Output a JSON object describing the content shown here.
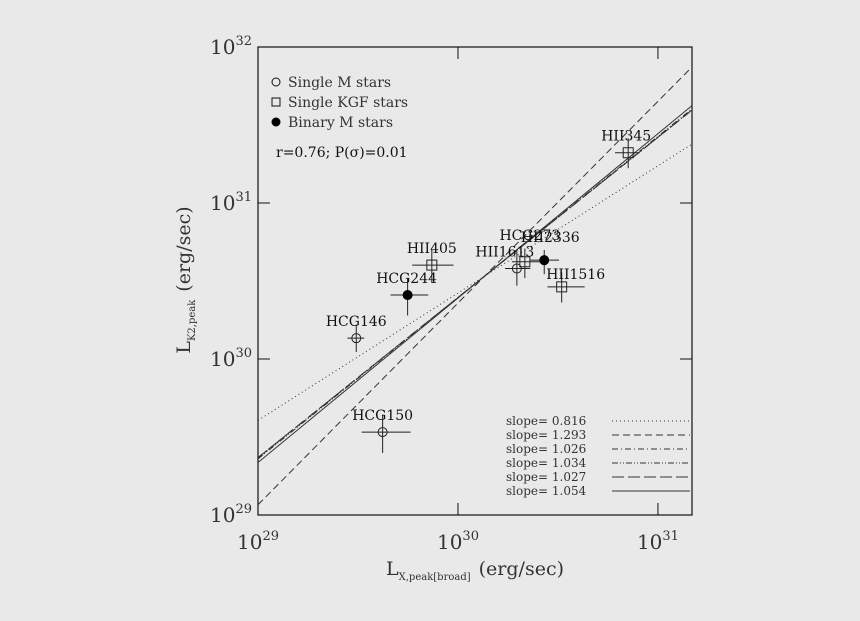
{
  "chart_data": {
    "type": "scatter",
    "x_label": {
      "main": "L",
      "sub": "X,peak[broad]",
      "unit": "(erg/sec)"
    },
    "y_label": {
      "main": "L",
      "sub": "K2,peak",
      "unit": "(erg/sec)"
    },
    "xscale": "log",
    "yscale": "log",
    "xlim": [
      1e+29,
      1.48e+31
    ],
    "ylim": [
      1e+29,
      1e+32
    ],
    "xticks": [
      {
        "value": 1e+29,
        "label": "10",
        "sup": "29"
      },
      {
        "value": 1e+30,
        "label": "10",
        "sup": "30"
      },
      {
        "value": 1e+31,
        "label": "10",
        "sup": "31"
      }
    ],
    "yticks": [
      {
        "value": 1e+29,
        "label": "10",
        "sup": "29"
      },
      {
        "value": 1e+30,
        "label": "10",
        "sup": "30"
      },
      {
        "value": 1e+31,
        "label": "10",
        "sup": "31"
      },
      {
        "value": 1e+32,
        "label": "10",
        "sup": "32"
      }
    ],
    "annotation": "r=0.76; P(σ)=0.01",
    "series": [
      {
        "name": "Single M stars",
        "marker": "circle",
        "color": "#222222",
        "labels": [
          "HCG150",
          "HCG146",
          "HII1613"
        ],
        "x": [
          4.2e+29,
          3.1e+29,
          1.97e+30
        ],
        "values": [
          3.4e+29,
          1.36e+30,
          3.8e+30
        ],
        "x_range": [
          [
            3.3e+29,
            5.8e+29
          ],
          [
            2.8e+29,
            3.4e+29
          ],
          [
            1.72e+30,
            2.3e+30
          ]
        ],
        "y_range": [
          [
            2.5e+29,
            4.4e+29
          ],
          [
            1.11e+30,
            1.66e+30
          ],
          [
            2.95e+30,
            5e+30
          ]
        ]
      },
      {
        "name": "Single KGF stars",
        "marker": "square",
        "color": "#222222",
        "labels": [
          "HII405",
          "HCG273",
          "HII1516",
          "HII345"
        ],
        "x": [
          7.4e+29,
          2.16e+30,
          3.3e+30,
          7.1e+30
        ],
        "values": [
          4e+30,
          4.2e+30,
          2.9e+30,
          2.1e+31
        ],
        "x_range": [
          [
            5.9e+29,
            9.5e+29
          ],
          [
            1.86e+30,
            2.57e+30
          ],
          [
            2.8e+30,
            4.3e+30
          ],
          [
            6.1e+30,
            8.1e+30
          ]
        ],
        "y_range": [
          [
            3.1e+30,
            5e+30
          ],
          [
            3.3e+30,
            5.1e+30
          ],
          [
            2.3e+30,
            3.6e+30
          ],
          [
            1.67e+31,
            2.6e+31
          ]
        ]
      },
      {
        "name": "Binary M stars",
        "marker": "filled",
        "color": "#000000",
        "labels": [
          "HCG244",
          "HII2336"
        ],
        "x": [
          5.6e+29,
          2.7e+30
        ],
        "values": [
          2.57e+30,
          4.3e+30
        ],
        "x_range": [
          [
            4.6e+29,
            7.1e+29
          ],
          [
            2.3e+30,
            3.2e+30
          ]
        ],
        "y_range": [
          [
            1.9e+30,
            3.3e+30
          ],
          [
            3.5e+30,
            5e+30
          ]
        ]
      }
    ],
    "fits": [
      {
        "name": "slope= 0.816",
        "slope": 0.816,
        "through": [
          1.36e+30,
          3.4e+30
        ],
        "dash": "1,3"
      },
      {
        "name": "slope= 1.293",
        "slope": 1.293,
        "through": [
          1.36e+30,
          3.4e+30
        ],
        "dash": "7,4"
      },
      {
        "name": "slope= 1.026",
        "slope": 1.026,
        "through": [
          1.36e+30,
          3.4e+30
        ],
        "dash": "6,3,1,3"
      },
      {
        "name": "slope= 1.034",
        "slope": 1.034,
        "through": [
          1.36e+30,
          3.4e+30
        ],
        "dash": "6,2,1,2,1,2"
      },
      {
        "name": "slope= 1.027",
        "slope": 1.027,
        "through": [
          1.36e+30,
          3.4e+30
        ],
        "dash": "12,4"
      },
      {
        "name": "slope= 1.054",
        "slope": 1.054,
        "through": [
          1.36e+30,
          3.4e+30
        ],
        "dash": "none"
      }
    ]
  }
}
